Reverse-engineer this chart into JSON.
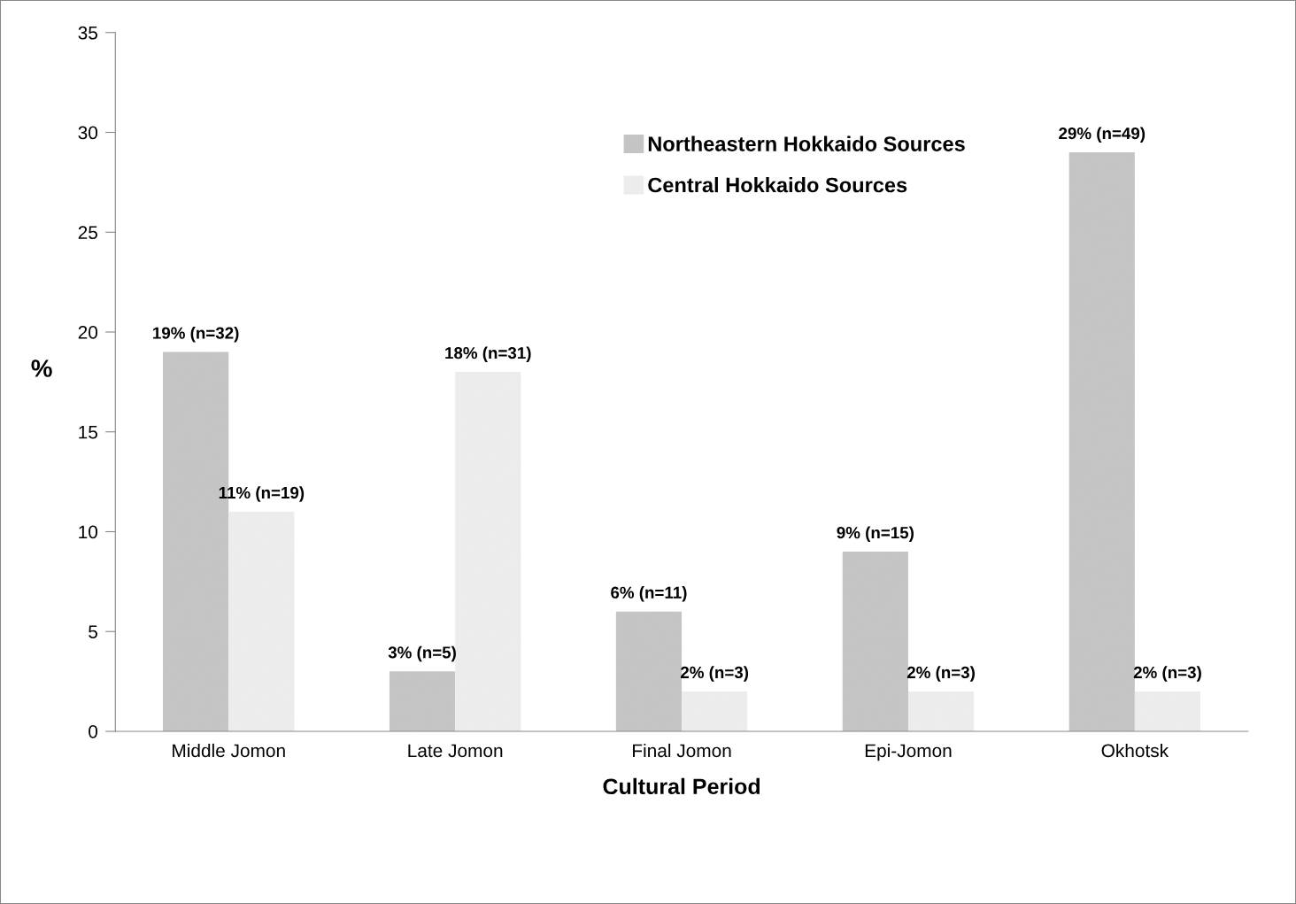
{
  "chart_data": {
    "type": "bar",
    "xlabel": "Cultural Period",
    "ylabel": "%",
    "categories": [
      "Middle Jomon",
      "Late Jomon",
      "Final Jomon",
      "Epi-Jomon",
      "Okhotsk"
    ],
    "series": [
      {
        "name": "Northeastern Hokkaido Sources",
        "color": "#c4c4c4",
        "values": [
          19,
          3,
          6,
          9,
          29
        ],
        "value_labels": [
          "19% (n=32)",
          "3% (n=5)",
          "6% (n=11)",
          "9% (n=15)",
          "29% (n=49)"
        ]
      },
      {
        "name": "Central Hokkaido Sources",
        "color": "#ececec",
        "values": [
          11,
          18,
          2,
          2,
          2
        ],
        "value_labels": [
          "11% (n=19)",
          "18% (n=31)",
          "2% (n=3)",
          "2% (n=3)",
          "2% (n=3)"
        ]
      }
    ],
    "ylim": [
      0,
      35
    ],
    "yticks": [
      0,
      5,
      10,
      15,
      20,
      25,
      30,
      35
    ],
    "grid": false,
    "legend": "top"
  }
}
